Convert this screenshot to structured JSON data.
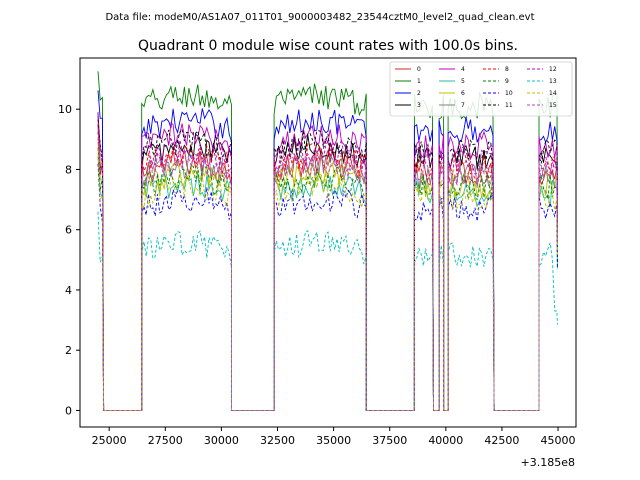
{
  "chart_data": {
    "type": "line",
    "suptitle": "Data file: modeM0/AS1A07_011T01_9000003482_23544cztM0_level2_quad_clean.evt",
    "title": "Quadrant 0 module wise count rates with 100.0s bins.",
    "xlabel": "",
    "ylabel": "",
    "offset_label": "+3.185e8",
    "xlim": [
      23700,
      45800
    ],
    "ylim": [
      -0.55,
      11.7
    ],
    "xticks": [
      25000,
      27500,
      30000,
      32500,
      35000,
      37500,
      40000,
      42500,
      45000
    ],
    "yticks": [
      0,
      2,
      4,
      6,
      8,
      10
    ],
    "xtick_labels": [
      "25000",
      "27500",
      "30000",
      "32500",
      "35000",
      "37500",
      "40000",
      "42500",
      "45000"
    ],
    "ytick_labels": [
      "0",
      "2",
      "4",
      "6",
      "8",
      "10"
    ],
    "legend_position": "top-right",
    "segments": [
      {
        "on": [
          24500,
          24750
        ],
        "gap": [
          24750,
          26450
        ]
      },
      {
        "on": [
          26450,
          30450
        ],
        "gap": [
          30450,
          32350
        ]
      },
      {
        "on": [
          32350,
          36450
        ],
        "gap": [
          36450,
          38600
        ]
      },
      {
        "on": [
          38600,
          39450
        ],
        "gap": [
          39450,
          39700
        ]
      },
      {
        "on": [
          39700,
          39900
        ],
        "gap": [
          39900,
          40100
        ]
      },
      {
        "on": [
          40100,
          42150
        ],
        "gap": [
          42150,
          44150
        ]
      },
      {
        "on": [
          44150,
          44950
        ],
        "gap": null
      }
    ],
    "series": [
      {
        "name": "0",
        "color": "#d62728",
        "dash": false,
        "level": 7.9
      },
      {
        "name": "1",
        "color": "#008000",
        "dash": false,
        "level": 10.1
      },
      {
        "name": "2",
        "color": "#0000ff",
        "dash": false,
        "level": 9.3
      },
      {
        "name": "3",
        "color": "#000000",
        "dash": false,
        "level": 8.4
      },
      {
        "name": "4",
        "color": "#bf00bf",
        "dash": false,
        "level": 8.8
      },
      {
        "name": "5",
        "color": "#1fbf9f",
        "dash": false,
        "level": 7.2
      },
      {
        "name": "6",
        "color": "#bfbf00",
        "dash": false,
        "level": 7.5
      },
      {
        "name": "7",
        "color": "#808080",
        "dash": false,
        "level": 7.8
      },
      {
        "name": "8",
        "color": "#ff0000",
        "dash": true,
        "level": 8.1
      },
      {
        "name": "9",
        "color": "#008000",
        "dash": true,
        "level": 7.4
      },
      {
        "name": "10",
        "color": "#0000ff",
        "dash": true,
        "level": 6.7
      },
      {
        "name": "11",
        "color": "#000000",
        "dash": true,
        "level": 8.6
      },
      {
        "name": "12",
        "color": "#bf00bf",
        "dash": true,
        "level": 8.3
      },
      {
        "name": "13",
        "color": "#00bfbf",
        "dash": true,
        "level": 5.2
      },
      {
        "name": "14",
        "color": "#bfbf00",
        "dash": true,
        "level": 7.1
      },
      {
        "name": "15",
        "color": "#bf40bf",
        "dash": true,
        "level": 7.9
      }
    ]
  }
}
